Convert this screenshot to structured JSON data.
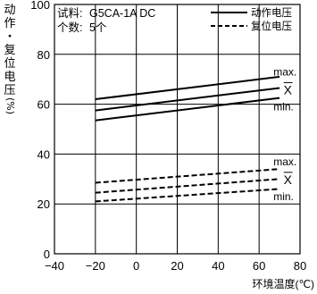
{
  "chart_data": {
    "type": "line",
    "title": "",
    "xlabel": "环境温度(℃)",
    "ylabel_chars": [
      "动",
      "作",
      "・",
      "复",
      "位",
      "电",
      "压",
      "(%)"
    ],
    "xlim": [
      -40,
      80
    ],
    "ylim": [
      0,
      100
    ],
    "x_ticks": [
      -40,
      -20,
      0,
      20,
      40,
      60,
      80
    ],
    "y_ticks": [
      0,
      20,
      40,
      60,
      80,
      100
    ],
    "grid": true,
    "info": {
      "sample_label": "试料:",
      "sample_value": "G5CA-1A DC",
      "count_label": "个数:",
      "count_value": "5个"
    },
    "legend": {
      "placement": "top-right",
      "entries": [
        {
          "label": "动作电压",
          "style": "solid"
        },
        {
          "label": "复位电压",
          "style": "dashed"
        }
      ]
    },
    "series": [
      {
        "name": "动作电压",
        "stat": "max.",
        "style": "solid",
        "x": [
          -20,
          70
        ],
        "y": [
          62,
          71
        ]
      },
      {
        "name": "动作电压",
        "stat": "X",
        "style": "solid",
        "x": [
          -20,
          70
        ],
        "y": [
          57.5,
          66.5
        ]
      },
      {
        "name": "动作电压",
        "stat": "min.",
        "style": "solid",
        "x": [
          -20,
          70
        ],
        "y": [
          53.5,
          62.5
        ]
      },
      {
        "name": "复位电压",
        "stat": "max.",
        "style": "dashed",
        "x": [
          -20,
          70
        ],
        "y": [
          28.5,
          34
        ]
      },
      {
        "name": "复位电压",
        "stat": "X",
        "style": "dashed",
        "x": [
          -20,
          70
        ],
        "y": [
          24.5,
          30
        ]
      },
      {
        "name": "复位电压",
        "stat": "min.",
        "style": "dashed",
        "x": [
          -20,
          70
        ],
        "y": [
          21,
          26
        ]
      }
    ],
    "annotations": [
      {
        "text": "max.",
        "x": 67,
        "y": 71.5
      },
      {
        "text": "X",
        "x": 72,
        "y": 64
      },
      {
        "text": "min.",
        "x": 67,
        "y": 57.5
      },
      {
        "text": "max.",
        "x": 67,
        "y": 35.5
      },
      {
        "text": "X",
        "x": 72,
        "y": 28
      },
      {
        "text": "min.",
        "x": 67,
        "y": 21.5
      }
    ]
  }
}
